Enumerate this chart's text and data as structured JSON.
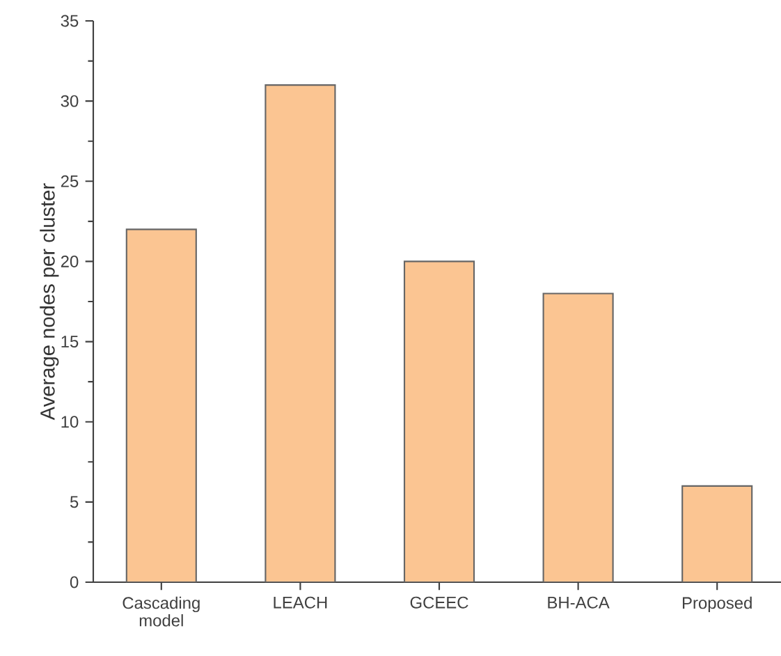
{
  "chart_data": {
    "type": "bar",
    "ylabel": "Average nodes per cluster",
    "categories": [
      "Cascading model",
      "LEACH",
      "GCEEC",
      "BH-ACA",
      "Proposed"
    ],
    "values": [
      22,
      31,
      20,
      18,
      6
    ],
    "color": "#fbc592",
    "ylim": [
      0,
      35
    ],
    "yticks": [
      0,
      5,
      10,
      15,
      20,
      25,
      30,
      35
    ],
    "grid": false
  }
}
